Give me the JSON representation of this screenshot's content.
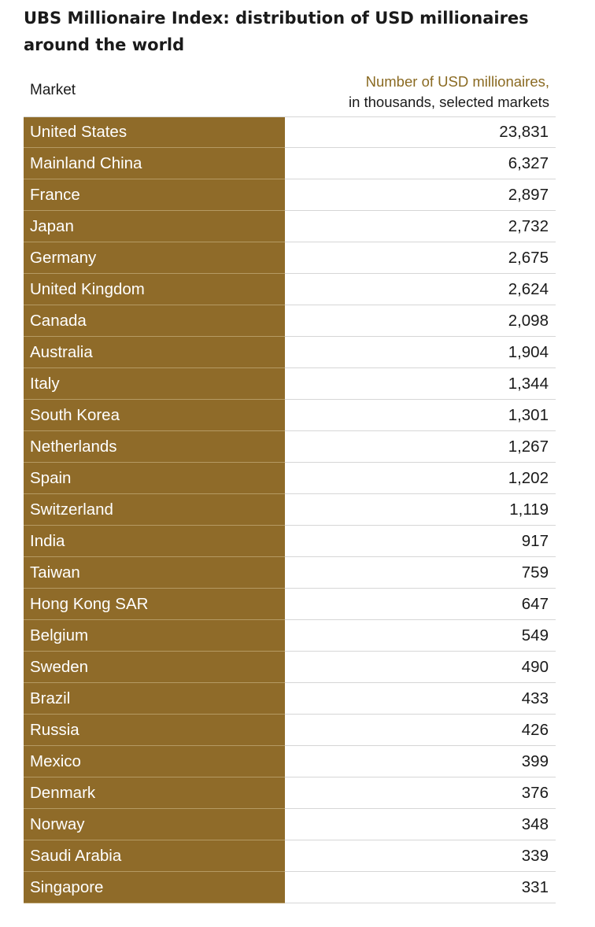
{
  "header": {
    "title": "UBS Millionaire Index: distribution of USD millionaires around the world",
    "market_label": "Market",
    "value_label_line1": "Number of USD millionaires,",
    "value_label_line2": "in thousands, selected markets"
  },
  "colors": {
    "market_fill": "#8f6b29",
    "header_accent": "#8a6a22"
  },
  "chart_data": {
    "type": "table",
    "title": "UBS Millionaire Index: distribution of USD millionaires around the world",
    "columns": [
      "Market",
      "Number of USD millionaires, in thousands, selected markets"
    ],
    "rows": [
      {
        "market": "United States",
        "value": "23,831"
      },
      {
        "market": "Mainland China",
        "value": "6,327"
      },
      {
        "market": "France",
        "value": "2,897"
      },
      {
        "market": "Japan",
        "value": "2,732"
      },
      {
        "market": "Germany",
        "value": "2,675"
      },
      {
        "market": "United Kingdom",
        "value": "2,624"
      },
      {
        "market": "Canada",
        "value": "2,098"
      },
      {
        "market": "Australia",
        "value": "1,904"
      },
      {
        "market": "Italy",
        "value": "1,344"
      },
      {
        "market": "South Korea",
        "value": "1,301"
      },
      {
        "market": "Netherlands",
        "value": "1,267"
      },
      {
        "market": "Spain",
        "value": "1,202"
      },
      {
        "market": "Switzerland",
        "value": "1,119"
      },
      {
        "market": "India",
        "value": "917"
      },
      {
        "market": "Taiwan",
        "value": "759"
      },
      {
        "market": "Hong Kong SAR",
        "value": "647"
      },
      {
        "market": "Belgium",
        "value": "549"
      },
      {
        "market": "Sweden",
        "value": "490"
      },
      {
        "market": "Brazil",
        "value": "433"
      },
      {
        "market": "Russia",
        "value": "426"
      },
      {
        "market": "Mexico",
        "value": "399"
      },
      {
        "market": "Denmark",
        "value": "376"
      },
      {
        "market": "Norway",
        "value": "348"
      },
      {
        "market": "Saudi Arabia",
        "value": "339"
      },
      {
        "market": "Singapore",
        "value": "331"
      }
    ]
  }
}
